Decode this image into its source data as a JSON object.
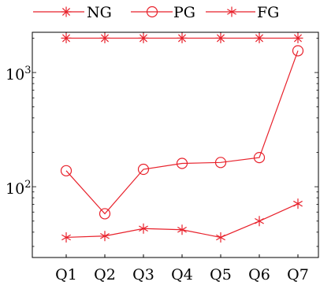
{
  "chart_data": {
    "type": "line",
    "x_scale": "categorical",
    "y_scale": "log",
    "categories": [
      "Q1",
      "Q2",
      "Q3",
      "Q4",
      "Q5",
      "Q6",
      "Q7"
    ],
    "series": [
      {
        "name": "NG",
        "marker": "asterisk",
        "color": "#e8212b",
        "values": [
          2000,
          2000,
          2000,
          2000,
          2000,
          2000,
          2000
        ]
      },
      {
        "name": "PG",
        "marker": "circle",
        "color": "#e8212b",
        "values": [
          138,
          58,
          142,
          160,
          163,
          180,
          1550
        ]
      },
      {
        "name": "FG",
        "marker": "star",
        "color": "#e8212b",
        "values": [
          36,
          37,
          43,
          42,
          36,
          50,
          71
        ]
      }
    ],
    "ylim": [
      24,
      2250
    ],
    "y_ticks": [
      {
        "value": 100,
        "label_base": "10",
        "label_exp": "2"
      },
      {
        "value": 1000,
        "label_base": "10",
        "label_exp": "3"
      }
    ],
    "legend": {
      "position": "top-center"
    },
    "grid": false
  }
}
